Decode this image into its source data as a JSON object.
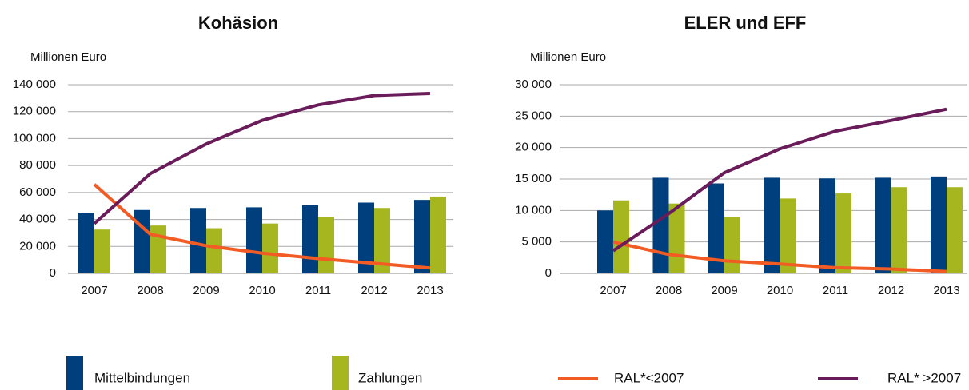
{
  "chart_data": [
    {
      "type": "bar_line",
      "title": "Kohäsion",
      "y_label": "Millionen Euro",
      "categories": [
        "2007",
        "2008",
        "2009",
        "2010",
        "2011",
        "2012",
        "2013"
      ],
      "ylim": [
        0,
        140000
      ],
      "yticks": [
        0,
        {
          "value": 20000,
          "label": "20 000"
        },
        {
          "value": 40000,
          "label": "40 000"
        },
        {
          "value": 60000,
          "label": "60 000"
        },
        {
          "value": 80000,
          "label": "80 000"
        },
        {
          "value": 100000,
          "label": "100 000"
        },
        {
          "value": 120000,
          "label": "120 000"
        },
        {
          "value": 140000,
          "label": "140 000"
        }
      ],
      "grid": true,
      "series": [
        {
          "name": "Mittelbindungen",
          "kind": "bar",
          "color": "#003f7d",
          "values": [
            45000,
            47000,
            48500,
            49000,
            50500,
            52500,
            54500
          ]
        },
        {
          "name": "Zahlungen",
          "kind": "bar",
          "color": "#a5b61e",
          "values": [
            32500,
            35500,
            33500,
            37000,
            42000,
            48500,
            57000
          ]
        },
        {
          "name": "RAL*<2007",
          "kind": "line",
          "color": "#f25c24",
          "values": [
            66000,
            29000,
            20500,
            15000,
            11000,
            7500,
            4000
          ]
        },
        {
          "name": "RAL* >2007",
          "kind": "line",
          "color": "#6a1b5a",
          "values": [
            37000,
            74000,
            96000,
            113500,
            125000,
            132000,
            133500
          ]
        }
      ]
    },
    {
      "type": "bar_line",
      "title": "ELER und EFF",
      "y_label": "Millionen Euro",
      "categories": [
        "2007",
        "2008",
        "2009",
        "2010",
        "2011",
        "2012",
        "2013"
      ],
      "ylim": [
        0,
        30000
      ],
      "yticks": [
        0,
        {
          "value": 5000,
          "label": "5 000"
        },
        {
          "value": 10000,
          "label": "10 000"
        },
        {
          "value": 15000,
          "label": "15 000"
        },
        {
          "value": 20000,
          "label": "20 000"
        },
        {
          "value": 25000,
          "label": "25 000"
        },
        {
          "value": 30000,
          "label": "30 000"
        }
      ],
      "grid": true,
      "series": [
        {
          "name": "Mittelbindungen",
          "kind": "bar",
          "color": "#003f7d",
          "values": [
            10000,
            15200,
            14300,
            15200,
            15100,
            15200,
            15400
          ]
        },
        {
          "name": "Zahlungen",
          "kind": "bar",
          "color": "#a5b61e",
          "values": [
            11600,
            11100,
            9000,
            11900,
            12700,
            13700,
            13700
          ]
        },
        {
          "name": "RAL*<2007",
          "kind": "line",
          "color": "#f25c24",
          "values": [
            5000,
            3000,
            2000,
            1500,
            900,
            700,
            300
          ]
        },
        {
          "name": "RAL* >2007",
          "kind": "line",
          "color": "#6a1b5a",
          "values": [
            3600,
            9500,
            16000,
            19800,
            22600,
            24300,
            26100
          ]
        }
      ]
    }
  ]
}
